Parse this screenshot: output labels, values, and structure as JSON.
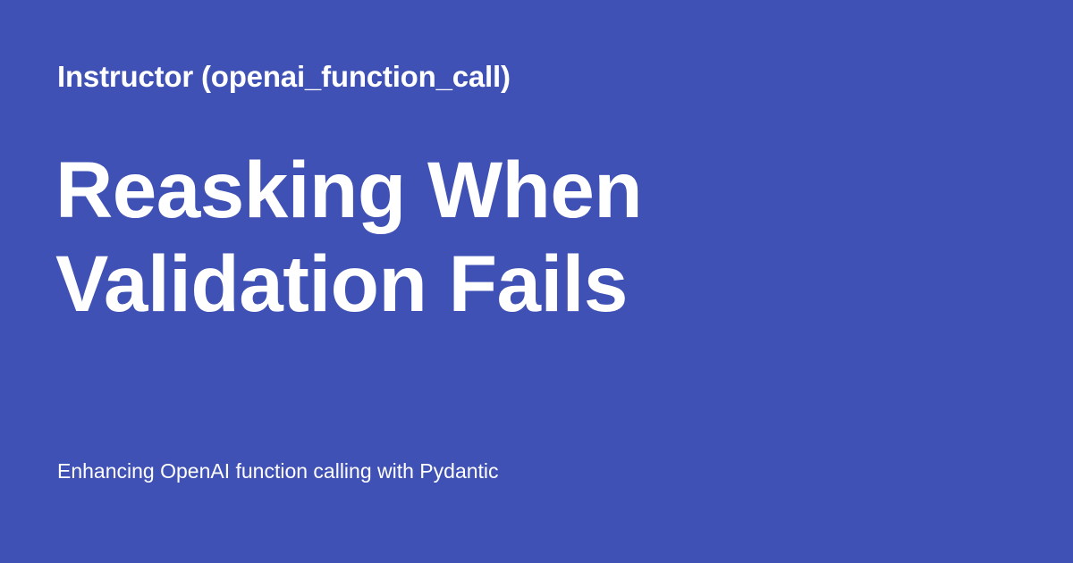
{
  "colors": {
    "background": "#3F51B5",
    "text": "#FFFFFF"
  },
  "card": {
    "site_name": "Instructor (openai_function_call)",
    "title_lines": [
      "Reasking When",
      "Validation Fails"
    ],
    "description": "Enhancing OpenAI function calling with Pydantic"
  }
}
